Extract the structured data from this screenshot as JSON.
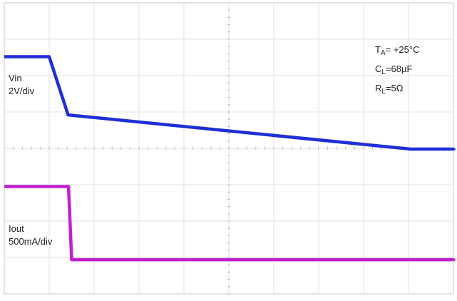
{
  "chart_data": {
    "type": "line",
    "grid": true,
    "grid_divisions": {
      "horizontal": 10,
      "vertical": 8
    },
    "x_unit": "div",
    "y_unit": "div",
    "xlim": [
      0,
      10
    ],
    "ylim": [
      0,
      8
    ],
    "series": [
      {
        "name": "Vin",
        "scale_label": "2V/div",
        "color": "#1f2fd6",
        "x": [
          0.0,
          1.0,
          1.42,
          9.05,
          10.0
        ],
        "y": [
          6.52,
          6.52,
          4.92,
          3.98,
          3.98
        ]
      },
      {
        "name": "Iout",
        "scale_label": "500mA/div",
        "color": "#c21fd0",
        "x": [
          0.0,
          1.43,
          1.5,
          10.0
        ],
        "y": [
          2.95,
          2.95,
          0.94,
          0.94
        ]
      }
    ],
    "labels": {
      "vin_name": "Vin",
      "vin_scale": "2V/div",
      "iout_name": "Iout",
      "iout_scale": "500mA/div"
    },
    "conditions": {
      "ta_base": "T",
      "ta_sub": "A",
      "ta_value": "= +25°C",
      "cl_base": "C",
      "cl_sub": "L",
      "cl_value": "=68µF",
      "rl_base": "R",
      "rl_sub": "L",
      "rl_value": "=5Ω"
    }
  }
}
